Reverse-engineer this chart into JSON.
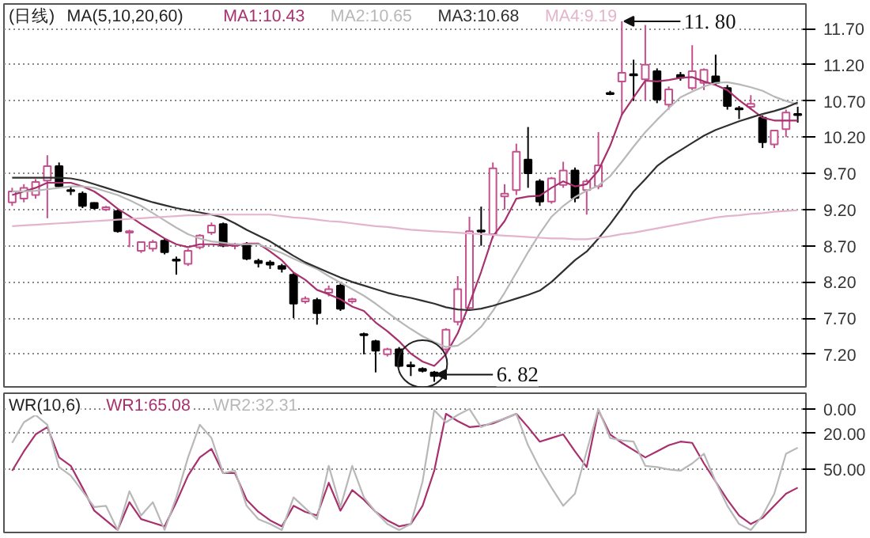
{
  "chart_data": [
    {
      "type": "candlestick",
      "title": "(日线)",
      "subtitle": "MA(5,10,20,60)",
      "categories": [
        null,
        null,
        null,
        null,
        null,
        null,
        null,
        null,
        null,
        null,
        null,
        null,
        null,
        null,
        null,
        null,
        null,
        null,
        null,
        null,
        null,
        null,
        null,
        null,
        null,
        null,
        null,
        null,
        null,
        null,
        null,
        null,
        null,
        null,
        null,
        null,
        null,
        null,
        null,
        null,
        null,
        null,
        null,
        null,
        null,
        null,
        null,
        null,
        null,
        null,
        null,
        null,
        null,
        null,
        null,
        null,
        null,
        null,
        null,
        null,
        null,
        null,
        null,
        null,
        null,
        null,
        null,
        null
      ],
      "ohlc": [
        [
          9.3,
          9.5,
          9.25,
          9.45
        ],
        [
          9.35,
          9.55,
          9.3,
          9.5
        ],
        [
          9.4,
          9.62,
          9.35,
          9.58
        ],
        [
          9.6,
          9.95,
          9.08,
          9.8
        ],
        [
          9.8,
          9.85,
          9.5,
          9.52
        ],
        [
          9.47,
          9.52,
          9.4,
          9.46
        ],
        [
          9.42,
          9.45,
          9.22,
          9.25
        ],
        [
          9.29,
          9.3,
          9.2,
          9.22
        ],
        [
          9.2,
          9.25,
          9.18,
          9.23
        ],
        [
          9.18,
          9.2,
          8.88,
          8.9
        ],
        [
          8.88,
          8.92,
          8.68,
          8.9
        ],
        [
          8.63,
          8.76,
          8.6,
          8.75
        ],
        [
          8.66,
          8.78,
          8.62,
          8.75
        ],
        [
          8.77,
          8.8,
          8.58,
          8.61
        ],
        [
          8.5,
          8.55,
          8.3,
          8.51
        ],
        [
          8.45,
          8.66,
          8.42,
          8.63
        ],
        [
          8.68,
          8.86,
          8.65,
          8.84
        ],
        [
          8.88,
          9.02,
          8.85,
          8.98
        ],
        [
          9.0,
          9.02,
          8.68,
          8.7
        ],
        [
          8.7,
          8.74,
          8.65,
          8.72
        ],
        [
          8.72,
          8.75,
          8.5,
          8.52
        ],
        [
          8.49,
          8.52,
          8.4,
          8.46
        ],
        [
          8.47,
          8.5,
          8.38,
          8.44
        ],
        [
          8.42,
          8.45,
          8.33,
          8.38
        ],
        [
          8.3,
          8.33,
          7.7,
          7.9
        ],
        [
          7.93,
          8.0,
          7.9,
          7.97
        ],
        [
          7.95,
          7.98,
          7.61,
          7.77
        ],
        [
          8.05,
          8.15,
          8.0,
          8.1
        ],
        [
          8.15,
          8.18,
          7.8,
          7.83
        ],
        [
          7.93,
          7.98,
          7.9,
          7.96
        ],
        [
          7.47,
          7.5,
          7.2,
          7.48
        ],
        [
          7.38,
          7.4,
          6.95,
          7.25
        ],
        [
          7.2,
          7.29,
          7.17,
          7.27
        ],
        [
          7.27,
          7.3,
          7.02,
          7.04
        ],
        [
          7.04,
          7.1,
          6.9,
          7.05
        ],
        [
          7.0,
          7.02,
          6.95,
          6.97
        ],
        [
          6.95,
          6.97,
          6.82,
          6.9
        ],
        [
          7.27,
          7.56,
          7.2,
          7.54
        ],
        [
          7.65,
          8.28,
          7.6,
          8.1
        ],
        [
          7.84,
          9.1,
          7.8,
          8.9
        ],
        [
          8.9,
          9.24,
          8.7,
          8.91
        ],
        [
          8.86,
          9.85,
          8.8,
          9.77
        ],
        [
          9.38,
          9.55,
          9.2,
          9.42
        ],
        [
          9.47,
          10.11,
          9.4,
          10.0
        ],
        [
          9.89,
          10.34,
          9.5,
          9.7
        ],
        [
          9.59,
          9.62,
          9.25,
          9.31
        ],
        [
          9.31,
          9.65,
          9.28,
          9.63
        ],
        [
          9.54,
          9.86,
          9.5,
          9.74
        ],
        [
          9.74,
          9.78,
          9.3,
          9.36
        ],
        [
          9.47,
          9.62,
          9.13,
          9.59
        ],
        [
          9.52,
          10.27,
          9.48,
          9.81
        ],
        [
          10.81,
          10.84,
          10.78,
          10.8
        ],
        [
          10.97,
          11.8,
          10.5,
          11.09
        ],
        [
          11.07,
          11.27,
          10.7,
          11.06
        ],
        [
          11.0,
          11.75,
          10.7,
          11.2
        ],
        [
          11.11,
          11.15,
          10.67,
          10.72
        ],
        [
          10.65,
          10.9,
          10.58,
          10.86
        ],
        [
          11.06,
          11.1,
          10.98,
          11.02
        ],
        [
          10.88,
          11.47,
          10.85,
          11.11
        ],
        [
          10.95,
          11.15,
          10.85,
          11.13
        ],
        [
          11.04,
          11.34,
          10.92,
          10.95
        ],
        [
          10.88,
          10.92,
          10.58,
          10.63
        ],
        [
          10.6,
          10.63,
          10.45,
          10.59
        ],
        [
          10.62,
          10.78,
          10.58,
          10.66
        ],
        [
          10.47,
          10.5,
          10.05,
          10.13
        ],
        [
          10.1,
          10.3,
          10.05,
          10.29
        ],
        [
          10.31,
          10.58,
          10.2,
          10.54
        ],
        [
          10.51,
          10.62,
          10.4,
          10.52
        ]
      ],
      "colors": [
        "#c4508e",
        "#c4508e",
        "#c4508e",
        "#c4508e",
        "#000000",
        "#000000",
        "#000000",
        "#000000",
        "#c4508e",
        "#000000",
        "#c4508e",
        "#c4508e",
        "#c4508e",
        "#000000",
        "#000000",
        "#c4508e",
        "#c4508e",
        "#c4508e",
        "#000000",
        "#c4508e",
        "#000000",
        "#000000",
        "#000000",
        "#000000",
        "#000000",
        "#c4508e",
        "#000000",
        "#c4508e",
        "#000000",
        "#c4508e",
        "#000000",
        "#000000",
        "#c4508e",
        "#000000",
        "#000000",
        "#000000",
        "#000000",
        "#c4508e",
        "#c4508e",
        "#c4508e",
        "#000000",
        "#c4508e",
        "#c4508e",
        "#c4508e",
        "#000000",
        "#000000",
        "#c4508e",
        "#c4508e",
        "#000000",
        "#c4508e",
        "#c4508e",
        "#000000",
        "#c4508e",
        "#000000",
        "#c4508e",
        "#000000",
        "#c4508e",
        "#000000",
        "#c4508e",
        "#c4508e",
        "#000000",
        "#000000",
        "#000000",
        "#c4508e",
        "#000000",
        "#c4508e",
        "#c4508e",
        "#000000"
      ],
      "series": [
        {
          "name": "MA1:10.43",
          "type": "line",
          "color": "#a8306e",
          "values": [
            9.4,
            9.45,
            9.5,
            9.57,
            9.57,
            9.57,
            9.52,
            9.45,
            9.34,
            9.21,
            9.11,
            9.0,
            8.9,
            8.8,
            8.72,
            8.68,
            8.72,
            8.72,
            8.71,
            8.7,
            8.73,
            8.73,
            8.62,
            8.5,
            8.33,
            8.23,
            8.09,
            8.03,
            7.96,
            7.86,
            7.8,
            7.64,
            7.52,
            7.38,
            7.21,
            7.1,
            7.04,
            7.2,
            7.49,
            7.9,
            8.34,
            8.83,
            9.04,
            9.35,
            9.38,
            9.39,
            9.5,
            9.59,
            9.52,
            9.55,
            9.74,
            10.08,
            10.51,
            10.75,
            10.98,
            10.97,
            10.99,
            11.02,
            11.03,
            10.97,
            10.92,
            10.85,
            10.71,
            10.59,
            10.47,
            10.43,
            10.43,
            10.43
          ]
        },
        {
          "name": "MA2:10.65",
          "type": "line",
          "color": "#b8b8b8",
          "values": [
            9.45,
            9.45,
            9.46,
            9.48,
            9.5,
            9.52,
            9.52,
            9.5,
            9.45,
            9.4,
            9.33,
            9.25,
            9.15,
            9.05,
            8.95,
            8.86,
            8.8,
            8.76,
            8.74,
            8.72,
            8.72,
            8.72,
            8.66,
            8.6,
            8.52,
            8.45,
            8.38,
            8.28,
            8.19,
            8.1,
            8.01,
            7.9,
            7.78,
            7.66,
            7.55,
            7.45,
            7.37,
            7.3,
            7.32,
            7.43,
            7.58,
            7.8,
            8.05,
            8.33,
            8.61,
            8.87,
            9.1,
            9.25,
            9.37,
            9.46,
            9.53,
            9.66,
            9.86,
            10.07,
            10.27,
            10.44,
            10.6,
            10.75,
            10.83,
            10.9,
            10.95,
            10.96,
            10.93,
            10.89,
            10.84,
            10.76,
            10.7,
            10.65
          ]
        },
        {
          "name": "MA3:10.68",
          "type": "line",
          "color": "#303030",
          "values": [
            9.64,
            9.64,
            9.64,
            9.64,
            9.64,
            9.63,
            9.6,
            9.55,
            9.5,
            9.45,
            9.4,
            9.35,
            9.3,
            9.26,
            9.22,
            9.19,
            9.16,
            9.13,
            9.09,
            9.01,
            8.92,
            8.84,
            8.76,
            8.66,
            8.56,
            8.47,
            8.4,
            8.33,
            8.26,
            8.2,
            8.15,
            8.1,
            8.05,
            8.01,
            7.98,
            7.94,
            7.9,
            7.85,
            7.82,
            7.81,
            7.83,
            7.87,
            7.92,
            7.97,
            8.02,
            8.08,
            8.2,
            8.35,
            8.5,
            8.62,
            8.8,
            9.0,
            9.22,
            9.45,
            9.62,
            9.8,
            9.92,
            10.02,
            10.12,
            10.22,
            10.3,
            10.36,
            10.42,
            10.47,
            10.52,
            10.56,
            10.61,
            10.68
          ]
        },
        {
          "name": "MA4:9.19",
          "type": "line",
          "color": "#e4b4cc",
          "values": [
            8.97,
            8.98,
            8.99,
            9.0,
            9.01,
            9.02,
            9.03,
            9.04,
            9.05,
            9.06,
            9.07,
            9.08,
            9.09,
            9.1,
            9.11,
            9.12,
            9.12,
            9.13,
            9.13,
            9.13,
            9.13,
            9.13,
            9.13,
            9.11,
            9.09,
            9.08,
            9.06,
            9.04,
            9.03,
            9.01,
            8.99,
            8.97,
            8.96,
            8.94,
            8.92,
            8.91,
            8.9,
            8.89,
            8.88,
            8.87,
            8.86,
            8.85,
            8.84,
            8.83,
            8.82,
            8.81,
            8.8,
            8.8,
            8.79,
            8.79,
            8.81,
            8.83,
            8.86,
            8.88,
            8.91,
            8.94,
            8.97,
            9.0,
            9.03,
            9.06,
            9.09,
            9.11,
            9.12,
            9.14,
            9.15,
            9.17,
            9.18,
            9.19
          ]
        }
      ],
      "ylim": [
        6.75,
        12.04
      ],
      "yticks": [
        {
          "value": 7.2,
          "label": "7.20"
        },
        {
          "value": 7.7,
          "label": "7.70"
        },
        {
          "value": 8.2,
          "label": "8.20"
        },
        {
          "value": 8.7,
          "label": "8.70"
        },
        {
          "value": 9.2,
          "label": "9.20"
        },
        {
          "value": 9.7,
          "label": "9.70"
        },
        {
          "value": 10.2,
          "label": "10.20"
        },
        {
          "value": 10.7,
          "label": "10.70"
        },
        {
          "value": 11.2,
          "label": "11.20"
        },
        {
          "value": 11.7,
          "label": "11.70"
        }
      ],
      "annotations": [
        "11. 80",
        "6. 82"
      ],
      "grid": "y",
      "legend": "top left",
      "tick_labels": "y"
    },
    {
      "type": "line",
      "title": "WR(10,6)",
      "categories": [
        null,
        null,
        null,
        null,
        null,
        null,
        null,
        null,
        null,
        null,
        null,
        null,
        null,
        null,
        null,
        null,
        null,
        null,
        null,
        null,
        null,
        null,
        null,
        null,
        null,
        null,
        null,
        null,
        null,
        null,
        null,
        null,
        null,
        null,
        null,
        null,
        null,
        null,
        null,
        null,
        null,
        null,
        null,
        null,
        null,
        null,
        null,
        null,
        null,
        null,
        null,
        null,
        null,
        null,
        null,
        null,
        null,
        null,
        null,
        null,
        null,
        null,
        null,
        null,
        null,
        null,
        null,
        null
      ],
      "series": [
        {
          "name": "WR1:65.08",
          "color": "#a8306e",
          "values": [
            51,
            35,
            21,
            15,
            40,
            47,
            65,
            84,
            92,
            100,
            77,
            91,
            94,
            97,
            77,
            55,
            40,
            33,
            53,
            53,
            75,
            85,
            92,
            97,
            80,
            85,
            88,
            61,
            84,
            67,
            75,
            85,
            92,
            97,
            95,
            80,
            51,
            4,
            10,
            15,
            14,
            12,
            8,
            4,
            15,
            27,
            24,
            21,
            35,
            48,
            1,
            21,
            28,
            34,
            40,
            35,
            30,
            27,
            28,
            45,
            60,
            75,
            88,
            95,
            90,
            80,
            70,
            65
          ]
        },
        {
          "name": "WR2:32.31",
          "color": "#b8b8b8",
          "values": [
            28,
            11,
            5,
            13,
            48,
            55,
            68,
            81,
            80,
            100,
            68,
            88,
            77,
            100,
            73,
            40,
            13,
            24,
            53,
            51,
            80,
            91,
            95,
            100,
            73,
            82,
            91,
            47,
            81,
            47,
            73,
            85,
            95,
            100,
            95,
            60,
            1,
            11,
            5,
            0,
            15,
            11,
            8,
            4,
            30,
            49,
            65,
            80,
            70,
            35,
            0,
            24,
            26,
            27,
            47,
            48,
            50,
            51,
            45,
            37,
            60,
            80,
            95,
            100,
            88,
            70,
            37,
            32
          ]
        }
      ],
      "ylim": [
        102,
        -13
      ],
      "yticks": [
        {
          "value": 0,
          "label": "0.00"
        },
        {
          "value": 20,
          "label": "20.00"
        },
        {
          "value": 50,
          "label": "50.00"
        }
      ],
      "grid": "y",
      "legend": "top left",
      "tick_labels": "y"
    }
  ]
}
